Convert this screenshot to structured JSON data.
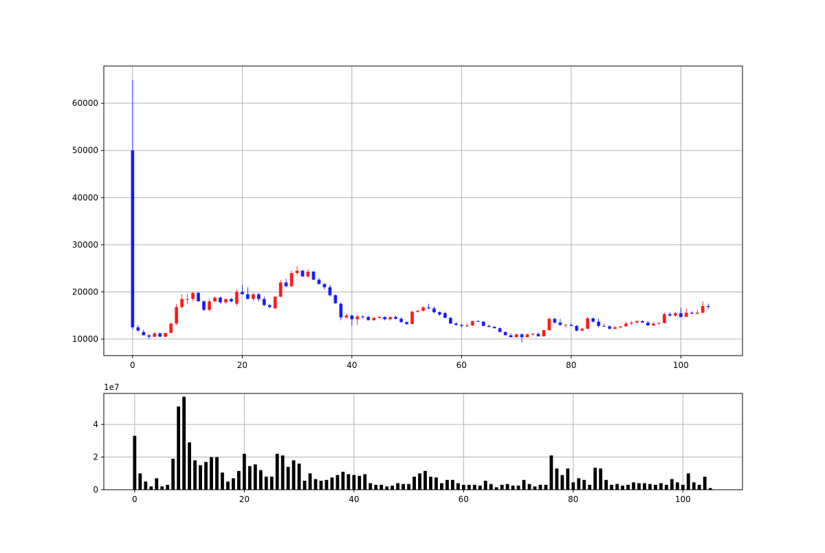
{
  "chart_data": [
    {
      "type": "candlestick",
      "title": "",
      "xlabel": "",
      "ylabel": "",
      "grid": true,
      "xlim": [
        -5.25,
        111.25
      ],
      "ylim": [
        6500,
        67900
      ],
      "xticks": [
        "0",
        "20",
        "40",
        "60",
        "80",
        "100"
      ],
      "yticks": [
        "10000",
        "20000",
        "30000",
        "40000",
        "50000",
        "60000"
      ],
      "colors": {
        "up": "#ff0000",
        "down": "#0000ff",
        "grid": "#b0b0b0"
      },
      "ohlc": [
        [
          50000,
          65000,
          12000,
          12500
        ],
        [
          12500,
          13000,
          11500,
          11800
        ],
        [
          11500,
          12000,
          10800,
          10800
        ],
        [
          10800,
          11000,
          10000,
          10500
        ],
        [
          10500,
          11500,
          10400,
          11200
        ],
        [
          11200,
          11400,
          10500,
          10500
        ],
        [
          10500,
          11300,
          10400,
          11300
        ],
        [
          11300,
          13500,
          11200,
          13300
        ],
        [
          13300,
          17500,
          13000,
          16800
        ],
        [
          16800,
          19500,
          16500,
          18500
        ],
        [
          18500,
          19500,
          17500,
          18500
        ],
        [
          18500,
          20000,
          18000,
          19800
        ],
        [
          19800,
          20000,
          18000,
          18000
        ],
        [
          18000,
          18200,
          16000,
          16200
        ],
        [
          16200,
          18500,
          16000,
          18000
        ],
        [
          18000,
          19000,
          17800,
          18800
        ],
        [
          18800,
          19000,
          17500,
          17800
        ],
        [
          17800,
          18500,
          17500,
          18500
        ],
        [
          18500,
          18700,
          17800,
          18000
        ],
        [
          17500,
          20500,
          17000,
          20000
        ],
        [
          20000,
          21500,
          19500,
          19500
        ],
        [
          19500,
          21000,
          18500,
          18500
        ],
        [
          18500,
          19800,
          18000,
          19500
        ],
        [
          19500,
          19800,
          18000,
          18500
        ],
        [
          18500,
          19000,
          17000,
          17200
        ],
        [
          17200,
          17500,
          16500,
          16800
        ],
        [
          16500,
          19000,
          16500,
          19000
        ],
        [
          19000,
          22500,
          18800,
          22000
        ],
        [
          22000,
          22800,
          21000,
          21200
        ],
        [
          21200,
          24500,
          21000,
          24000
        ],
        [
          24000,
          25500,
          23500,
          24500
        ],
        [
          24500,
          24700,
          23200,
          23300
        ],
        [
          23300,
          24800,
          23000,
          24300
        ],
        [
          24300,
          24500,
          22500,
          22600
        ],
        [
          22600,
          23000,
          21500,
          21700
        ],
        [
          21700,
          21800,
          20500,
          21000
        ],
        [
          21000,
          21500,
          19000,
          19300
        ],
        [
          19300,
          19500,
          17500,
          17600
        ],
        [
          17500,
          17800,
          14000,
          14600
        ],
        [
          14600,
          15500,
          14300,
          15000
        ],
        [
          15000,
          15200,
          12800,
          14200
        ],
        [
          14200,
          15200,
          13000,
          14800
        ],
        [
          14800,
          15000,
          14300,
          14700
        ],
        [
          14700,
          14900,
          14000,
          14000
        ],
        [
          14000,
          14700,
          13900,
          14500
        ],
        [
          14500,
          14800,
          14300,
          14700
        ],
        [
          14700,
          14800,
          14000,
          14200
        ],
        [
          14200,
          14700,
          13900,
          14700
        ],
        [
          14700,
          15000,
          14200,
          14300
        ],
        [
          14300,
          14600,
          13500,
          13600
        ],
        [
          13600,
          13700,
          13000,
          13200
        ],
        [
          13200,
          16000,
          13100,
          15800
        ],
        [
          15800,
          16200,
          15600,
          16000
        ],
        [
          16000,
          17000,
          15800,
          16700
        ],
        [
          16700,
          17500,
          16400,
          16500
        ],
        [
          16500,
          16900,
          15500,
          15700
        ],
        [
          15700,
          15900,
          14900,
          15200
        ],
        [
          15500,
          15800,
          14500,
          14500
        ],
        [
          14500,
          14700,
          13200,
          13300
        ],
        [
          13300,
          13600,
          12900,
          13000
        ],
        [
          13000,
          13200,
          12400,
          12800
        ],
        [
          12800,
          13300,
          12500,
          12900
        ],
        [
          12900,
          13900,
          12800,
          13800
        ],
        [
          13800,
          14000,
          13700,
          13700
        ],
        [
          13700,
          13800,
          12700,
          12800
        ],
        [
          12800,
          13100,
          12500,
          12600
        ],
        [
          12600,
          12700,
          12300,
          12300
        ],
        [
          12300,
          12500,
          11500,
          11500
        ],
        [
          11500,
          11600,
          10800,
          10800
        ],
        [
          10800,
          11200,
          10400,
          10400
        ],
        [
          10400,
          11200,
          10300,
          11000
        ],
        [
          11000,
          11200,
          9300,
          10400
        ],
        [
          10400,
          11200,
          10300,
          11000
        ],
        [
          11000,
          11300,
          10800,
          11100
        ],
        [
          11100,
          11400,
          10500,
          10600
        ],
        [
          10600,
          12000,
          10500,
          11900
        ],
        [
          11900,
          14500,
          11800,
          14300
        ],
        [
          14300,
          14500,
          13300,
          13500
        ],
        [
          13500,
          14300,
          12800,
          13000
        ],
        [
          13000,
          13200,
          12500,
          13000
        ],
        [
          13000,
          13400,
          12700,
          12800
        ],
        [
          12800,
          13000,
          11600,
          11800
        ],
        [
          11800,
          12300,
          11700,
          12200
        ],
        [
          12200,
          14800,
          12100,
          14400
        ],
        [
          14400,
          14600,
          13500,
          13700
        ],
        [
          13700,
          14300,
          12500,
          12800
        ],
        [
          12800,
          13200,
          12600,
          12700
        ],
        [
          12700,
          12900,
          12000,
          12200
        ],
        [
          12200,
          12800,
          12100,
          12500
        ],
        [
          12500,
          12700,
          12300,
          12700
        ],
        [
          12700,
          13700,
          12600,
          13300
        ],
        [
          13300,
          13800,
          13000,
          13500
        ],
        [
          13500,
          14000,
          13300,
          13800
        ],
        [
          13800,
          14000,
          13500,
          13500
        ],
        [
          13500,
          13800,
          12800,
          12900
        ],
        [
          12900,
          13600,
          12800,
          13300
        ],
        [
          13300,
          13500,
          13000,
          13400
        ],
        [
          13400,
          15500,
          13300,
          15300
        ],
        [
          15300,
          15700,
          14800,
          15000
        ],
        [
          15000,
          15800,
          14700,
          15500
        ],
        [
          15500,
          16700,
          14600,
          14700
        ],
        [
          14700,
          16500,
          14700,
          15600
        ],
        [
          15600,
          15900,
          15300,
          15400
        ],
        [
          15400,
          16300,
          15200,
          15600
        ],
        [
          15600,
          18000,
          15400,
          17000
        ],
        [
          17000,
          17500,
          16300,
          16800
        ]
      ]
    },
    {
      "type": "bar",
      "title": "",
      "xlabel": "",
      "ylabel": "",
      "grid": true,
      "offset_label": "1e7",
      "xlim": [
        -5.25,
        111.25
      ],
      "ylim": [
        0,
        5.9
      ],
      "xticks": [
        "0",
        "20",
        "40",
        "60",
        "80",
        "100"
      ],
      "yticks": [
        "0",
        "2",
        "4"
      ],
      "colors": {
        "bar": "#000000",
        "grid": "#b0b0b0"
      },
      "values": [
        3.3,
        1.0,
        0.5,
        0.2,
        0.7,
        0.2,
        0.3,
        1.9,
        5.1,
        5.7,
        2.9,
        1.8,
        1.5,
        1.7,
        2.0,
        2.0,
        1.05,
        0.5,
        0.7,
        1.15,
        2.2,
        1.45,
        1.55,
        1.2,
        0.8,
        0.8,
        2.2,
        2.1,
        1.4,
        1.8,
        1.6,
        0.55,
        1.0,
        0.65,
        0.55,
        0.6,
        0.75,
        0.9,
        1.1,
        0.95,
        0.9,
        0.85,
        0.95,
        0.4,
        0.3,
        0.3,
        0.2,
        0.25,
        0.4,
        0.35,
        0.35,
        0.8,
        1.0,
        1.15,
        0.8,
        0.75,
        0.4,
        0.6,
        0.6,
        0.4,
        0.3,
        0.3,
        0.3,
        0.25,
        0.55,
        0.35,
        0.15,
        0.3,
        0.35,
        0.25,
        0.25,
        0.6,
        0.35,
        0.2,
        0.3,
        0.3,
        2.1,
        1.3,
        0.9,
        1.3,
        0.45,
        0.7,
        0.6,
        0.3,
        1.35,
        1.3,
        0.6,
        0.3,
        0.35,
        0.25,
        0.3,
        0.45,
        0.4,
        0.4,
        0.35,
        0.3,
        0.4,
        0.3,
        0.65,
        0.45,
        0.3,
        1.0,
        0.45,
        0.3,
        0.8,
        0.1
      ]
    }
  ]
}
